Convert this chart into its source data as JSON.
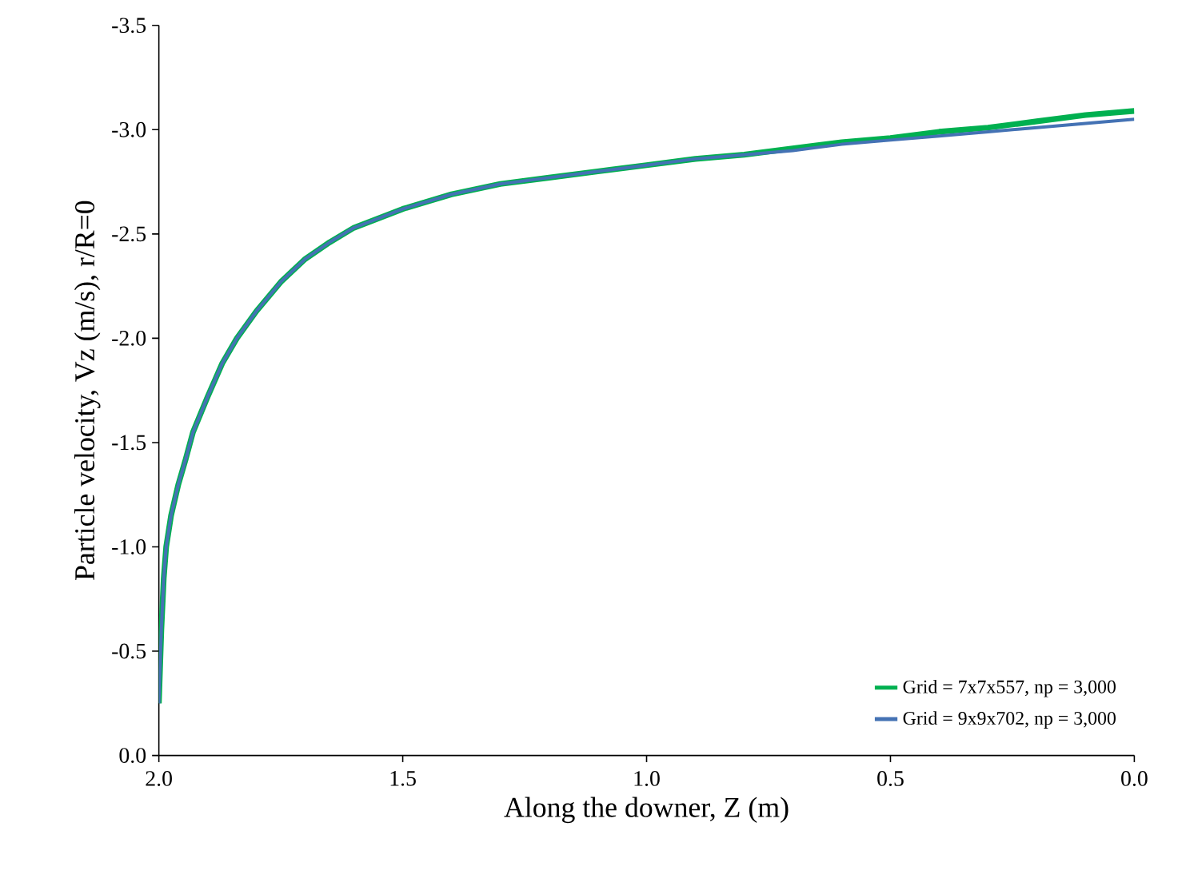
{
  "chart_data": {
    "type": "line",
    "xlabel": "Along the downer, Z (m)",
    "ylabel": "Particle velocity, Vz (m/s), r/R=0",
    "xlim": [
      2.0,
      0.0
    ],
    "xticks": [
      {
        "value": 2.0,
        "label": "2.0"
      },
      {
        "value": 1.5,
        "label": "1.5"
      },
      {
        "value": 1.0,
        "label": "1.0"
      },
      {
        "value": 0.5,
        "label": "0.5"
      },
      {
        "value": 0.0,
        "label": "0.0"
      }
    ],
    "ylim": [
      0.0,
      -3.5
    ],
    "yticks": [
      {
        "value": 0.0,
        "label": "0.0"
      },
      {
        "value": -0.5,
        "label": "-0.5"
      },
      {
        "value": -1.0,
        "label": "-1.0"
      },
      {
        "value": -1.5,
        "label": "-1.5"
      },
      {
        "value": -2.0,
        "label": "-2.0"
      },
      {
        "value": -2.5,
        "label": "-2.5"
      },
      {
        "value": -3.0,
        "label": "-3.0"
      },
      {
        "value": -3.5,
        "label": "-3.5"
      }
    ],
    "legend": "bottom right",
    "grid": false,
    "marker": "none",
    "line_style": "solid",
    "series": [
      {
        "name": "Grid = 7x7x557, np = 3,000",
        "color": "#00b050",
        "x": [
          2.0,
          1.995,
          1.99,
          1.985,
          1.975,
          1.96,
          1.945,
          1.93,
          1.9,
          1.87,
          1.84,
          1.8,
          1.75,
          1.7,
          1.65,
          1.6,
          1.5,
          1.4,
          1.3,
          1.2,
          1.1,
          1.0,
          0.9,
          0.8,
          0.7,
          0.6,
          0.5,
          0.4,
          0.3,
          0.2,
          0.1,
          0.0
        ],
        "values": [
          -0.25,
          -0.6,
          -0.85,
          -1.0,
          -1.15,
          -1.3,
          -1.42,
          -1.55,
          -1.72,
          -1.88,
          -2.0,
          -2.13,
          -2.27,
          -2.38,
          -2.46,
          -2.53,
          -2.62,
          -2.69,
          -2.74,
          -2.77,
          -2.8,
          -2.83,
          -2.86,
          -2.88,
          -2.91,
          -2.94,
          -2.96,
          -2.99,
          -3.01,
          -3.04,
          -3.07,
          -3.09
        ]
      },
      {
        "name": "Grid = 9x9x702, np = 3,000",
        "color": "#4472b4",
        "x": [
          2.0,
          1.995,
          1.99,
          1.985,
          1.975,
          1.96,
          1.945,
          1.93,
          1.9,
          1.87,
          1.84,
          1.8,
          1.75,
          1.7,
          1.65,
          1.6,
          1.5,
          1.4,
          1.3,
          1.2,
          1.1,
          1.0,
          0.9,
          0.8,
          0.7,
          0.6,
          0.5,
          0.4,
          0.3,
          0.2,
          0.1,
          0.0
        ],
        "values": [
          -0.25,
          -0.6,
          -0.85,
          -1.0,
          -1.15,
          -1.3,
          -1.42,
          -1.55,
          -1.72,
          -1.88,
          -2.0,
          -2.13,
          -2.27,
          -2.38,
          -2.46,
          -2.53,
          -2.62,
          -2.69,
          -2.74,
          -2.77,
          -2.8,
          -2.83,
          -2.86,
          -2.88,
          -2.9,
          -2.93,
          -2.95,
          -2.97,
          -2.99,
          -3.01,
          -3.03,
          -3.05
        ]
      }
    ]
  }
}
